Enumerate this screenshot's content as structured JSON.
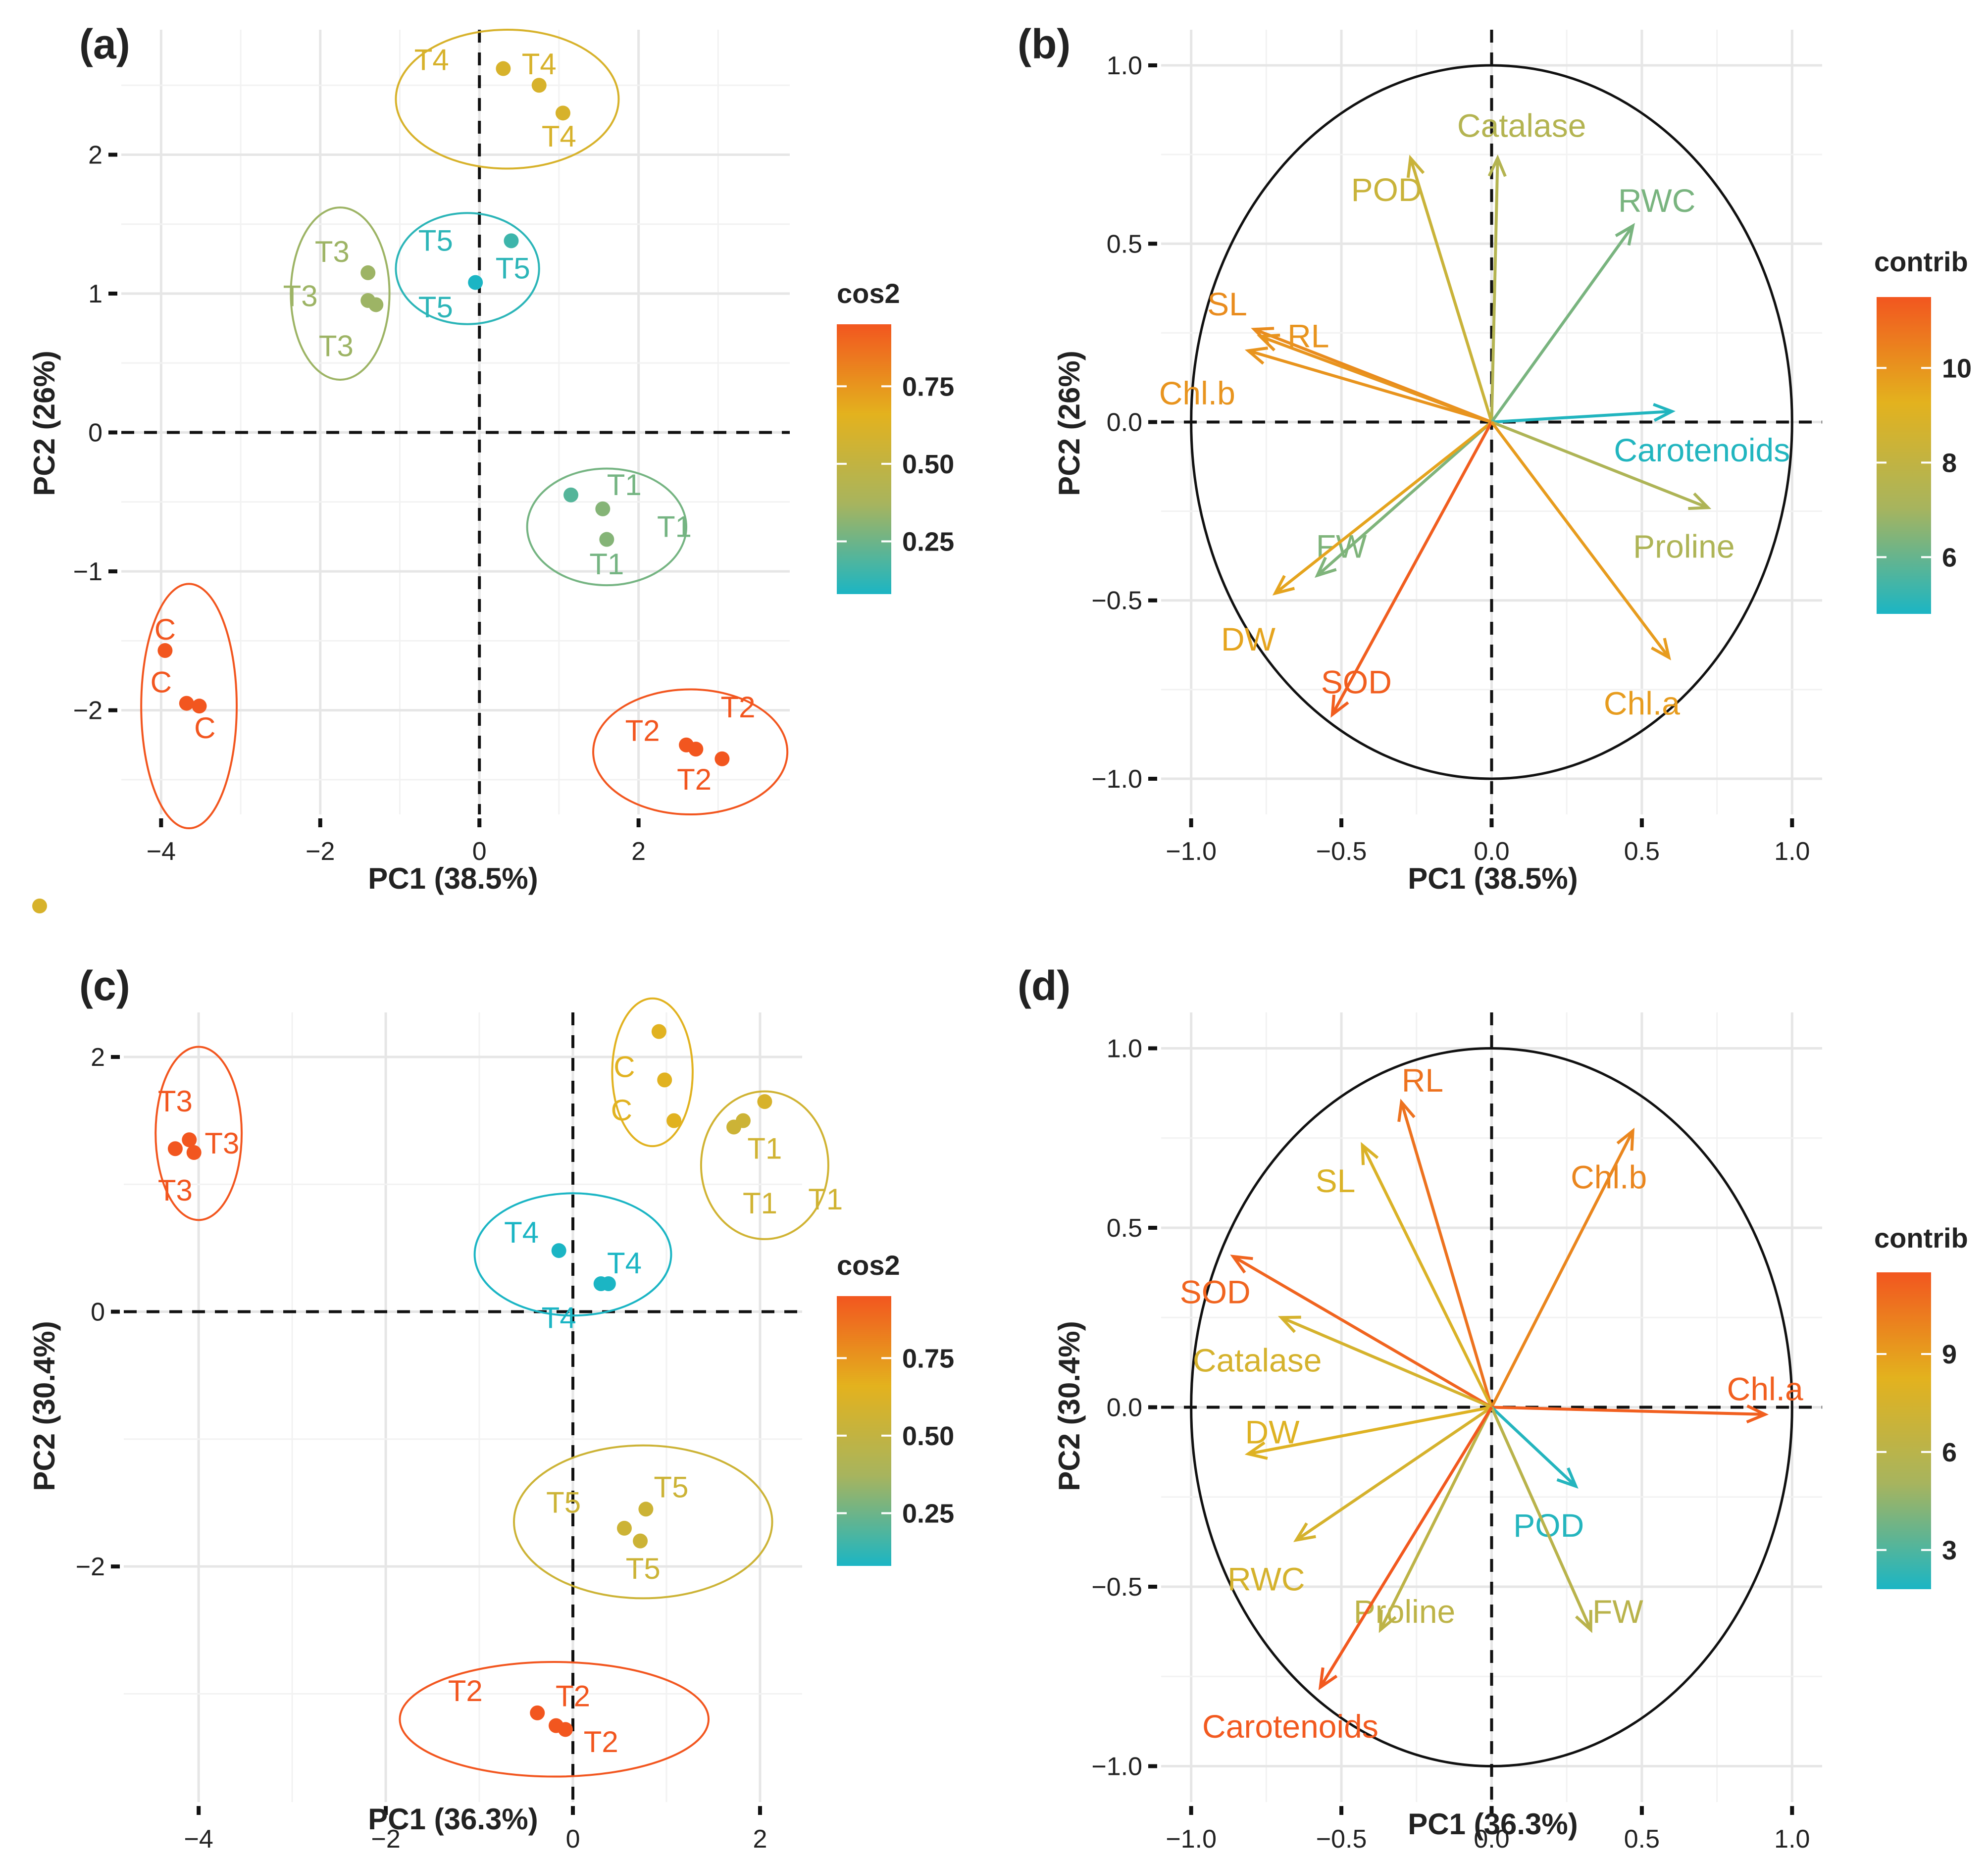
{
  "colors": {
    "scale_low": "#1BB5C4",
    "scale_mid1": "#A7B45E",
    "scale_mid2": "#E3B21E",
    "scale_high": "#F2561F"
  },
  "chart_data": [
    {
      "id": "a",
      "type": "scatter",
      "panel_label": "(a)",
      "xlabel": "PC1 (38.5%)",
      "ylabel": "PC2 (26%)",
      "xlim": [
        -4.5,
        3.9
      ],
      "ylim": [
        -2.75,
        2.9
      ],
      "xticks": [
        -4,
        -2,
        0,
        2
      ],
      "yticks": [
        -2,
        -1,
        0,
        1,
        2
      ],
      "tick_labels_x": [
        "−4",
        "−2",
        "0",
        "2"
      ],
      "tick_labels_y": [
        "−2",
        "−1",
        "0",
        "1",
        "2"
      ],
      "color_scale": {
        "title": "cos2",
        "min": 0.08,
        "max": 0.95,
        "ticks": [
          0.25,
          0.5,
          0.75
        ],
        "tick_labels": [
          "0.25",
          "0.50",
          "0.75"
        ]
      },
      "groups": [
        {
          "name": "T4",
          "ellipse": {
            "cx": 0.35,
            "cy": 2.4,
            "rx": 1.4,
            "ry": 0.5
          },
          "points": [
            {
              "x": 0.3,
              "y": 2.62,
              "cos2": 0.6
            },
            {
              "x": 0.75,
              "y": 2.5,
              "cos2": 0.6
            },
            {
              "x": 1.05,
              "y": 2.3,
              "cos2": 0.6
            }
          ],
          "labels": [
            {
              "text": "T4",
              "x": -0.6,
              "y": 2.68
            },
            {
              "text": "T4",
              "x": 0.75,
              "y": 2.65
            },
            {
              "text": "T4",
              "x": 1.0,
              "y": 2.13
            }
          ]
        },
        {
          "name": "T5",
          "ellipse": {
            "cx": -0.15,
            "cy": 1.18,
            "rx": 0.9,
            "ry": 0.4
          },
          "points": [
            {
              "x": 0.4,
              "y": 1.38,
              "cos2": 0.15
            },
            {
              "x": -0.05,
              "y": 1.08,
              "cos2": 0.08
            }
          ],
          "labels": [
            {
              "text": "T5",
              "x": -0.55,
              "y": 1.38
            },
            {
              "text": "T5",
              "x": 0.42,
              "y": 1.18
            },
            {
              "text": "T5",
              "x": -0.55,
              "y": 0.9
            }
          ]
        },
        {
          "name": "T3",
          "ellipse": {
            "cx": -1.75,
            "cy": 1.0,
            "rx": 0.62,
            "ry": 0.62
          },
          "points": [
            {
              "x": -1.4,
              "y": 1.15,
              "cos2": 0.35
            },
            {
              "x": -1.4,
              "y": 0.95,
              "cos2": 0.35
            },
            {
              "x": -1.3,
              "y": 0.92,
              "cos2": 0.35
            }
          ],
          "labels": [
            {
              "text": "T3",
              "x": -1.85,
              "y": 1.3
            },
            {
              "text": "T3",
              "x": -2.25,
              "y": 0.98
            },
            {
              "text": "T3",
              "x": -1.8,
              "y": 0.62
            }
          ]
        },
        {
          "name": "T1",
          "ellipse": {
            "cx": 1.6,
            "cy": -0.68,
            "rx": 1.0,
            "ry": 0.42
          },
          "points": [
            {
              "x": 1.15,
              "y": -0.45,
              "cos2": 0.2
            },
            {
              "x": 1.55,
              "y": -0.55,
              "cos2": 0.3
            },
            {
              "x": 1.6,
              "y": -0.77,
              "cos2": 0.3
            }
          ],
          "labels": [
            {
              "text": "T1",
              "x": 1.82,
              "y": -0.38
            },
            {
              "text": "T1",
              "x": 2.45,
              "y": -0.68
            },
            {
              "text": "T1",
              "x": 1.6,
              "y": -0.95
            }
          ]
        },
        {
          "name": "C",
          "ellipse": {
            "cx": -3.65,
            "cy": -1.97,
            "rx": 0.6,
            "ry": 0.88
          },
          "points": [
            {
              "x": -3.95,
              "y": -1.57,
              "cos2": 0.95
            },
            {
              "x": -3.68,
              "y": -1.95,
              "cos2": 0.95
            },
            {
              "x": -3.52,
              "y": -1.97,
              "cos2": 0.95
            }
          ],
          "labels": [
            {
              "text": "C",
              "x": -3.95,
              "y": -1.42
            },
            {
              "text": "C",
              "x": -4.0,
              "y": -1.8
            },
            {
              "text": "C",
              "x": -3.45,
              "y": -2.13
            }
          ]
        },
        {
          "name": "T2",
          "ellipse": {
            "cx": 2.65,
            "cy": -2.3,
            "rx": 1.22,
            "ry": 0.45
          },
          "points": [
            {
              "x": 2.6,
              "y": -2.25,
              "cos2": 0.95
            },
            {
              "x": 2.72,
              "y": -2.28,
              "cos2": 0.95
            },
            {
              "x": 3.05,
              "y": -2.35,
              "cos2": 0.95
            }
          ],
          "labels": [
            {
              "text": "T2",
              "x": 2.05,
              "y": -2.15
            },
            {
              "text": "T2",
              "x": 3.25,
              "y": -1.98
            },
            {
              "text": "T2",
              "x": 2.7,
              "y": -2.5
            }
          ]
        }
      ],
      "stray_point": {
        "cos2": 0.6
      }
    },
    {
      "id": "b",
      "type": "line",
      "panel_label": "(b)",
      "xlabel": "PC1 (38.5%)",
      "ylabel": "PC2 (26%)",
      "xlim": [
        -1.1,
        1.1
      ],
      "ylim": [
        -1.1,
        1.1
      ],
      "xticks": [
        -1.0,
        -0.5,
        0.0,
        0.5,
        1.0
      ],
      "yticks": [
        -1.0,
        -0.5,
        0.0,
        0.5,
        1.0
      ],
      "tick_labels_x": [
        "−1.0",
        "−0.5",
        "0.0",
        "0.5",
        "1.0"
      ],
      "tick_labels_y": [
        "−1.0",
        "−0.5",
        "0.0",
        "0.5",
        "1.0"
      ],
      "color_scale": {
        "title": "contrib",
        "min": 4.8,
        "max": 11.5,
        "ticks": [
          6,
          8,
          10
        ],
        "tick_labels": [
          "6",
          "8",
          "10"
        ]
      },
      "variables": [
        {
          "name": "Catalase",
          "x": 0.02,
          "y": 0.74,
          "contrib": 7.5,
          "lx": 0.1,
          "ly": 0.83
        },
        {
          "name": "POD",
          "x": -0.27,
          "y": 0.74,
          "contrib": 8.3,
          "lx": -0.35,
          "ly": 0.65
        },
        {
          "name": "RWC",
          "x": 0.47,
          "y": 0.55,
          "contrib": 6.3,
          "lx": 0.55,
          "ly": 0.62
        },
        {
          "name": "SL",
          "x": -0.79,
          "y": 0.26,
          "contrib": 10.2,
          "lx": -0.88,
          "ly": 0.33
        },
        {
          "name": "RL",
          "x": -0.77,
          "y": 0.24,
          "contrib": 10.0,
          "lx": -0.61,
          "ly": 0.24
        },
        {
          "name": "Chl.b",
          "x": -0.81,
          "y": 0.2,
          "contrib": 10.0,
          "lx": -0.98,
          "ly": 0.08
        },
        {
          "name": "Carotenoids",
          "x": 0.6,
          "y": 0.03,
          "contrib": 4.9,
          "lx": 0.7,
          "ly": -0.08
        },
        {
          "name": "Proline",
          "x": 0.72,
          "y": -0.24,
          "contrib": 7.3,
          "lx": 0.64,
          "ly": -0.35
        },
        {
          "name": "FW",
          "x": -0.58,
          "y": -0.43,
          "contrib": 6.4,
          "lx": -0.5,
          "ly": -0.35
        },
        {
          "name": "DW",
          "x": -0.72,
          "y": -0.48,
          "contrib": 9.6,
          "lx": -0.81,
          "ly": -0.61
        },
        {
          "name": "SOD",
          "x": -0.53,
          "y": -0.82,
          "contrib": 11.3,
          "lx": -0.45,
          "ly": -0.73
        },
        {
          "name": "Chl.a",
          "x": 0.59,
          "y": -0.66,
          "contrib": 9.8,
          "lx": 0.5,
          "ly": -0.79
        }
      ]
    },
    {
      "id": "c",
      "type": "scatter",
      "panel_label": "(c)",
      "xlabel": "PC1 (36.3%)",
      "ylabel": "PC2 (30.4%)",
      "xlim": [
        -4.8,
        2.45
      ],
      "ylim": [
        -3.85,
        2.35
      ],
      "xticks": [
        -4,
        -2,
        0,
        2
      ],
      "yticks": [
        -2,
        0,
        2
      ],
      "tick_labels_x": [
        "−4",
        "−2",
        "0",
        "2"
      ],
      "tick_labels_y": [
        "−2",
        "0",
        "2"
      ],
      "color_scale": {
        "title": "cos2",
        "min": 0.08,
        "max": 0.95,
        "ticks": [
          0.25,
          0.5,
          0.75
        ],
        "tick_labels": [
          "0.25",
          "0.50",
          "0.75"
        ]
      },
      "groups": [
        {
          "name": "T3",
          "ellipse": {
            "cx": -4.0,
            "cy": 1.4,
            "rx": 0.46,
            "ry": 0.68
          },
          "points": [
            {
              "x": -4.25,
              "y": 1.28,
              "cos2": 0.95
            },
            {
              "x": -4.1,
              "y": 1.35,
              "cos2": 0.95
            },
            {
              "x": -4.05,
              "y": 1.25,
              "cos2": 0.95
            }
          ],
          "labels": [
            {
              "text": "T3",
              "x": -4.25,
              "y": 1.65
            },
            {
              "text": "T3",
              "x": -3.75,
              "y": 1.32
            },
            {
              "text": "T3",
              "x": -4.25,
              "y": 0.95
            }
          ]
        },
        {
          "name": "C",
          "ellipse": {
            "cx": 0.85,
            "cy": 1.88,
            "rx": 0.43,
            "ry": 0.58
          },
          "points": [
            {
              "x": 0.92,
              "y": 2.2,
              "cos2": 0.65
            },
            {
              "x": 0.98,
              "y": 1.82,
              "cos2": 0.65
            },
            {
              "x": 1.08,
              "y": 1.5,
              "cos2": 0.65
            }
          ],
          "labels": [
            {
              "text": "C",
              "x": 0.55,
              "y": 1.92
            },
            {
              "text": "C",
              "x": 0.52,
              "y": 1.58
            }
          ]
        },
        {
          "name": "T1",
          "ellipse": {
            "cx": 2.05,
            "cy": 1.15,
            "rx": 0.68,
            "ry": 0.58
          },
          "points": [
            {
              "x": 1.72,
              "y": 1.45,
              "cos2": 0.55
            },
            {
              "x": 1.82,
              "y": 1.5,
              "cos2": 0.55
            },
            {
              "x": 2.05,
              "y": 1.65,
              "cos2": 0.6
            }
          ],
          "labels": [
            {
              "text": "T1",
              "x": 2.05,
              "y": 1.28
            },
            {
              "text": "T1",
              "x": 2.0,
              "y": 0.85
            },
            {
              "text": "T1",
              "x": 2.7,
              "y": 0.88
            }
          ]
        },
        {
          "name": "T4",
          "ellipse": {
            "cx": 0.0,
            "cy": 0.45,
            "rx": 1.05,
            "ry": 0.48
          },
          "points": [
            {
              "x": -0.15,
              "y": 0.48,
              "cos2": 0.08
            },
            {
              "x": 0.3,
              "y": 0.22,
              "cos2": 0.08
            },
            {
              "x": 0.38,
              "y": 0.22,
              "cos2": 0.08
            }
          ],
          "labels": [
            {
              "text": "T4",
              "x": -0.55,
              "y": 0.62
            },
            {
              "text": "T4",
              "x": 0.55,
              "y": 0.38
            },
            {
              "text": "T4",
              "x": -0.15,
              "y": -0.05
            }
          ]
        },
        {
          "name": "T5",
          "ellipse": {
            "cx": 0.75,
            "cy": -1.65,
            "rx": 1.38,
            "ry": 0.6
          },
          "points": [
            {
              "x": 0.55,
              "y": -1.7,
              "cos2": 0.55
            },
            {
              "x": 0.78,
              "y": -1.55,
              "cos2": 0.55
            },
            {
              "x": 0.72,
              "y": -1.8,
              "cos2": 0.55
            }
          ],
          "labels": [
            {
              "text": "T5",
              "x": 1.05,
              "y": -1.38
            },
            {
              "text": "T5",
              "x": -0.1,
              "y": -1.5
            },
            {
              "text": "T5",
              "x": 0.75,
              "y": -2.02
            }
          ]
        },
        {
          "name": "T2",
          "ellipse": {
            "cx": -0.2,
            "cy": -3.2,
            "rx": 1.65,
            "ry": 0.45
          },
          "points": [
            {
              "x": -0.38,
              "y": -3.15,
              "cos2": 0.95
            },
            {
              "x": -0.18,
              "y": -3.25,
              "cos2": 0.95
            },
            {
              "x": -0.08,
              "y": -3.28,
              "cos2": 0.95
            }
          ],
          "labels": [
            {
              "text": "T2",
              "x": -1.15,
              "y": -2.98
            },
            {
              "text": "T2",
              "x": 0.0,
              "y": -3.02
            },
            {
              "text": "T2",
              "x": 0.3,
              "y": -3.38
            }
          ]
        }
      ]
    },
    {
      "id": "d",
      "type": "line",
      "panel_label": "(d)",
      "xlabel": "PC1 (36.3%)",
      "ylabel": "PC2 (30.4%)",
      "xlim": [
        -1.1,
        1.1
      ],
      "ylim": [
        -1.1,
        1.1
      ],
      "xticks": [
        -1.0,
        -0.5,
        0.0,
        0.5,
        1.0
      ],
      "yticks": [
        -1.0,
        -0.5,
        0.0,
        0.5,
        1.0
      ],
      "tick_labels_x": [
        "−1.0",
        "−0.5",
        "0.0",
        "0.5",
        "1.0"
      ],
      "tick_labels_y": [
        "−1.0",
        "−0.5",
        "0.0",
        "0.5",
        "1.0"
      ],
      "color_scale": {
        "title": "contrib",
        "min": 1.8,
        "max": 11.5,
        "ticks": [
          3,
          6,
          9
        ],
        "tick_labels": [
          "3",
          "6",
          "9"
        ]
      },
      "variables": [
        {
          "name": "RL",
          "x": -0.3,
          "y": 0.85,
          "contrib": 10.5,
          "lx": -0.23,
          "ly": 0.91
        },
        {
          "name": "SL",
          "x": -0.43,
          "y": 0.73,
          "contrib": 7.8,
          "lx": -0.52,
          "ly": 0.63
        },
        {
          "name": "Chl.b",
          "x": 0.47,
          "y": 0.77,
          "contrib": 9.8,
          "lx": 0.39,
          "ly": 0.64
        },
        {
          "name": "SOD",
          "x": -0.86,
          "y": 0.42,
          "contrib": 11.0,
          "lx": -0.92,
          "ly": 0.32
        },
        {
          "name": "Catalase",
          "x": -0.7,
          "y": 0.25,
          "contrib": 7.5,
          "lx": -0.78,
          "ly": 0.13
        },
        {
          "name": "Chl.a",
          "x": 0.91,
          "y": -0.02,
          "contrib": 11.2,
          "lx": 0.91,
          "ly": 0.05
        },
        {
          "name": "DW",
          "x": -0.81,
          "y": -0.13,
          "contrib": 8.0,
          "lx": -0.73,
          "ly": -0.07
        },
        {
          "name": "POD",
          "x": 0.28,
          "y": -0.22,
          "contrib": 2.0,
          "lx": 0.19,
          "ly": -0.33
        },
        {
          "name": "RWC",
          "x": -0.65,
          "y": -0.37,
          "contrib": 7.5,
          "lx": -0.75,
          "ly": -0.48
        },
        {
          "name": "Proline",
          "x": -0.37,
          "y": -0.62,
          "contrib": 6.2,
          "lx": -0.29,
          "ly": -0.57
        },
        {
          "name": "FW",
          "x": 0.33,
          "y": -0.62,
          "contrib": 6.0,
          "lx": 0.42,
          "ly": -0.57
        },
        {
          "name": "Carotenoids",
          "x": -0.57,
          "y": -0.78,
          "contrib": 11.4,
          "lx": -0.67,
          "ly": -0.89
        }
      ]
    }
  ]
}
